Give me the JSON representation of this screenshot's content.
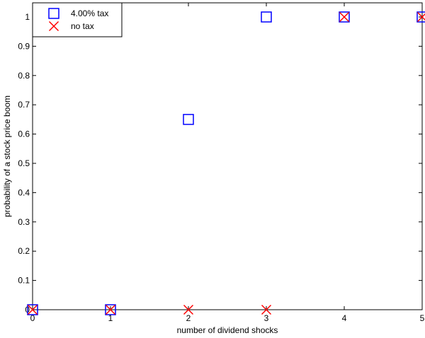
{
  "chart_data": {
    "type": "scatter",
    "xlabel": "number of dividend shocks",
    "ylabel": "probability of a stock price boom",
    "xlim": [
      0,
      5
    ],
    "ylim": [
      0,
      1.0
    ],
    "xticks": [
      0,
      1,
      2,
      3,
      4,
      5
    ],
    "yticks": [
      0,
      0.1,
      0.2,
      0.3,
      0.4,
      0.5,
      0.6,
      0.7,
      0.8,
      0.9,
      1
    ],
    "grid": false,
    "legend_position": "top-left",
    "series": [
      {
        "name": "4.00% tax",
        "marker": "square",
        "color": "#0000ff",
        "x": [
          0,
          1,
          2,
          3,
          4,
          5
        ],
        "y": [
          0,
          0,
          0.65,
          1,
          1,
          1
        ]
      },
      {
        "name": "no tax",
        "marker": "x",
        "color": "#ff0000",
        "x": [
          0,
          1,
          2,
          3,
          4,
          5
        ],
        "y": [
          0,
          0,
          0,
          0,
          1,
          1
        ]
      }
    ]
  }
}
